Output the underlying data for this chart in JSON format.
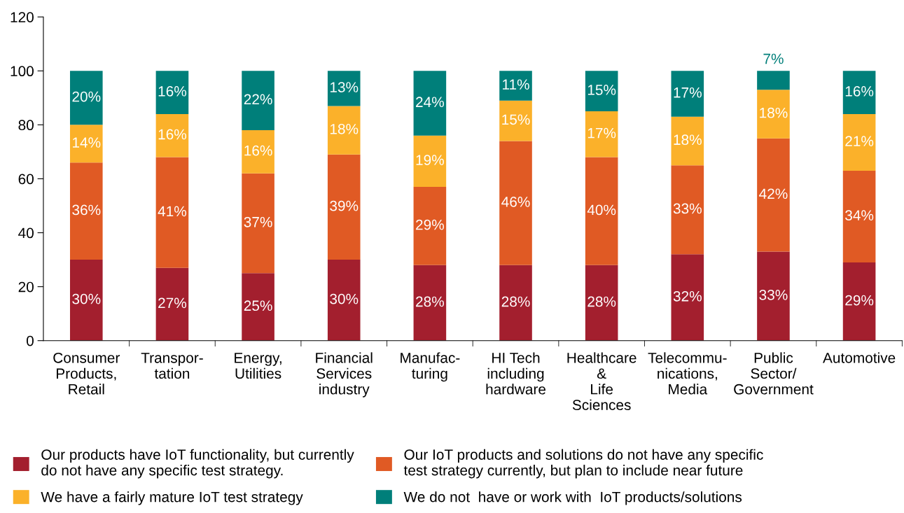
{
  "chart_data": {
    "type": "bar",
    "stacked": true,
    "categories": [
      "Consumer\nProducts,\nRetail",
      "Transpor-\ntation",
      "Energy,\nUtilities",
      "Financial\nServices\nindustry",
      "Manufac-\nturing",
      "HI Tech\nincluding\nhardware",
      "Healthcare\n&\nLife\nSciences",
      "Telecommu-\nnications,\nMedia",
      "Public\nSector/\nGovernment",
      "Automotive"
    ],
    "series": [
      {
        "name": "Our products have IoT functionality, but currently\ndo not have any specific test strategy.",
        "color": "#a31f2e",
        "values": [
          30,
          27,
          25,
          30,
          28,
          28,
          28,
          32,
          33,
          29
        ],
        "value_labels": [
          "30%",
          "27%",
          "25%",
          "30%",
          "28%",
          "28%",
          "28%",
          "32%",
          "33%",
          "29%"
        ]
      },
      {
        "name": "Our IoT products and solutions do not have any specific\ntest strategy currently, but plan to include near future",
        "color": "#e05a24",
        "values": [
          36,
          41,
          37,
          39,
          29,
          46,
          40,
          33,
          42,
          34
        ],
        "value_labels": [
          "36%",
          "41%",
          "37%",
          "39%",
          "29%",
          "46%",
          "40%",
          "33%",
          "42%",
          "34%"
        ]
      },
      {
        "name": "We have a fairly mature IoT test strategy",
        "color": "#fbb12a",
        "values": [
          14,
          16,
          16,
          18,
          19,
          15,
          17,
          18,
          18,
          21
        ],
        "value_labels": [
          "14%",
          "16%",
          "16%",
          "18%",
          "19%",
          "15%",
          "17%",
          "18%",
          "18%",
          "21%"
        ]
      },
      {
        "name": "We do not  have or work with  IoT products/solutions",
        "color": "#007f7a",
        "values": [
          20,
          16,
          22,
          13,
          24,
          11,
          15,
          17,
          7,
          16
        ],
        "value_labels": [
          "20%",
          "16%",
          "22%",
          "13%",
          "24%",
          "11%",
          "15%",
          "17%",
          "7%",
          "16%"
        ]
      }
    ],
    "ylim": [
      0,
      120
    ],
    "yticks": [
      0,
      20,
      40,
      60,
      80,
      100,
      120
    ],
    "grid": false,
    "legend": "bottom"
  }
}
